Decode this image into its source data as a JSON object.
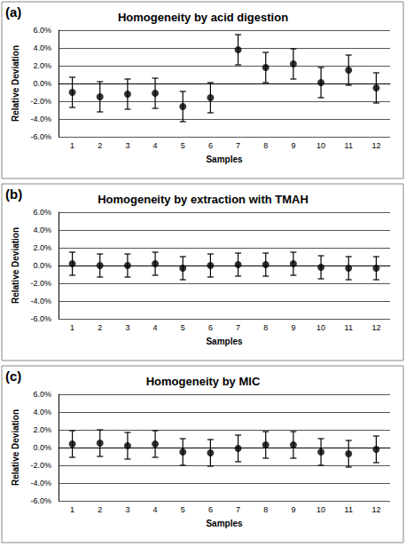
{
  "chart_data": [
    {
      "type": "scatter",
      "annotation": "(a)",
      "title": "Homogeneity by acid digestion",
      "xlabel": "Samples",
      "ylabel": "Relative Deviation",
      "categories": [
        "1",
        "2",
        "3",
        "4",
        "5",
        "6",
        "7",
        "8",
        "9",
        "10",
        "11",
        "12"
      ],
      "values": [
        -1.0,
        -1.5,
        -1.2,
        -1.1,
        -2.6,
        -1.6,
        3.8,
        1.8,
        2.2,
        0.1,
        1.5,
        -0.5
      ],
      "errors": [
        1.7,
        1.7,
        1.7,
        1.7,
        1.7,
        1.7,
        1.7,
        1.7,
        1.7,
        1.7,
        1.7,
        1.7
      ],
      "color": "#000000",
      "marker": "circle",
      "grid": true,
      "ylim": [
        -6,
        6
      ],
      "yticks": [
        {
          "value": -6,
          "label": "-6.0%"
        },
        {
          "value": -4,
          "label": "-4.0%"
        },
        {
          "value": -2,
          "label": "-2.0%"
        },
        {
          "value": 0,
          "label": "0.0%"
        },
        {
          "value": 2,
          "label": "2.0%"
        },
        {
          "value": 4,
          "label": "4.0%"
        },
        {
          "value": 6,
          "label": "6.0%"
        }
      ]
    },
    {
      "type": "scatter",
      "annotation": "(b)",
      "title": "Homogeneity by extraction with TMAH",
      "xlabel": "Samples",
      "ylabel": "Relative Deviation",
      "categories": [
        "1",
        "2",
        "3",
        "4",
        "5",
        "6",
        "7",
        "8",
        "9",
        "10",
        "11",
        "12"
      ],
      "values": [
        0.2,
        0.0,
        0.0,
        0.2,
        -0.3,
        0.0,
        0.1,
        0.1,
        0.2,
        -0.2,
        -0.3,
        -0.3
      ],
      "errors": [
        1.3,
        1.3,
        1.3,
        1.3,
        1.3,
        1.3,
        1.3,
        1.3,
        1.3,
        1.3,
        1.3,
        1.3
      ],
      "color": "#000000",
      "marker": "circle",
      "grid": true,
      "ylim": [
        -6,
        6
      ],
      "yticks": [
        {
          "value": -6,
          "label": "-6.0%"
        },
        {
          "value": -4,
          "label": "-4.0%"
        },
        {
          "value": -2,
          "label": "-2.0%"
        },
        {
          "value": 0,
          "label": "0.0%"
        },
        {
          "value": 2,
          "label": "2.0%"
        },
        {
          "value": 4,
          "label": "4.0%"
        },
        {
          "value": 6,
          "label": "6.0%"
        }
      ]
    },
    {
      "type": "scatter",
      "annotation": "(c)",
      "title": "Homogeneity by MIC",
      "xlabel": "Samples",
      "ylabel": "Relative Deviation",
      "categories": [
        "1",
        "2",
        "3",
        "4",
        "5",
        "6",
        "7",
        "8",
        "9",
        "10",
        "11",
        "12"
      ],
      "values": [
        0.4,
        0.5,
        0.2,
        0.4,
        -0.5,
        -0.6,
        -0.1,
        0.3,
        0.3,
        -0.5,
        -0.7,
        -0.2
      ],
      "errors": [
        1.5,
        1.5,
        1.5,
        1.5,
        1.5,
        1.5,
        1.5,
        1.5,
        1.5,
        1.5,
        1.5,
        1.5
      ],
      "color": "#000000",
      "marker": "circle",
      "grid": true,
      "ylim": [
        -6,
        6
      ],
      "yticks": [
        {
          "value": -6,
          "label": "-6.0%"
        },
        {
          "value": -4,
          "label": "-4.0%"
        },
        {
          "value": -2,
          "label": "-2.0%"
        },
        {
          "value": 0,
          "label": "0.0%"
        },
        {
          "value": 2,
          "label": "2.0%"
        },
        {
          "value": 4,
          "label": "4.0%"
        },
        {
          "value": 6,
          "label": "6.0%"
        }
      ]
    }
  ]
}
